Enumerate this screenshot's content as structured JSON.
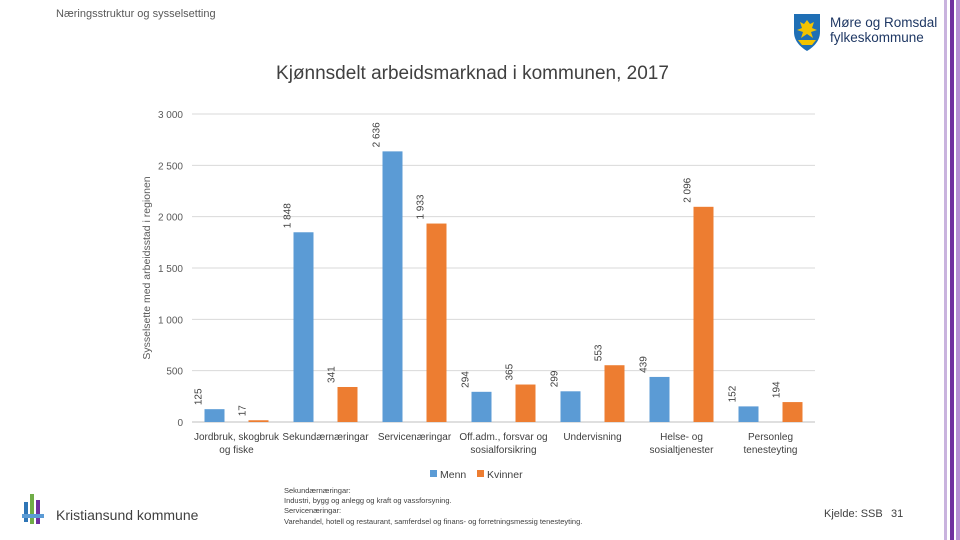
{
  "header": {
    "section": "Næringsstruktur og sysselsetting"
  },
  "logo": {
    "line1": "Møre og Romsdal",
    "line2": "fylkeskommune"
  },
  "chart_data": {
    "type": "bar",
    "title": "Kjønnsdelt arbeidsmarknad i kommunen, 2017",
    "ylabel": "Sysselsette med arbeidsstad i regionen",
    "xlabel": "",
    "ylim": [
      0,
      3000
    ],
    "yticks": [
      0,
      500,
      1000,
      1500,
      2000,
      2500,
      3000
    ],
    "ytick_labels": [
      "0",
      "500",
      "1 000",
      "1 500",
      "2 000",
      "2 500",
      "3 000"
    ],
    "categories": [
      [
        "Jordbruk, skogbruk",
        "og fiske"
      ],
      [
        "Sekundærnæringar"
      ],
      [
        "Servicenæringar"
      ],
      [
        "Off.adm., forsvar og",
        "sosialforsikring"
      ],
      [
        "Undervisning"
      ],
      [
        "Helse- og",
        "sosialtjenester"
      ],
      [
        "Personleg",
        "tenesteyting"
      ]
    ],
    "series": [
      {
        "name": "Menn",
        "color": "#5b9bd5",
        "values": [
          125,
          1848,
          2636,
          294,
          299,
          439,
          152
        ],
        "labels": [
          "125",
          "1 848",
          "2 636",
          "294",
          "299",
          "439",
          "152"
        ]
      },
      {
        "name": "Kvinner",
        "color": "#ed7d31",
        "values": [
          17,
          341,
          1933,
          365,
          553,
          2096,
          194
        ],
        "labels": [
          "17",
          "341",
          "1 933",
          "365",
          "553",
          "2 096",
          "194"
        ]
      }
    ],
    "grid": true,
    "legend": "bottom"
  },
  "footer": {
    "municipality": "Kristiansund kommune",
    "notes": [
      "Sekundærnæringar:",
      "Industri, bygg og anlegg og kraft og vassforsyning.",
      "Servicenæringar:",
      "Varehandel, hotell og restaurant, samferdsel og finans- og forretningsmessig tenesteyting."
    ],
    "source": "Kjelde: SSB",
    "page": "31"
  },
  "colors": {
    "accent_purple": "#7030a0",
    "brand_blue": "#1f3864",
    "logo_gold": "#f2c300"
  }
}
